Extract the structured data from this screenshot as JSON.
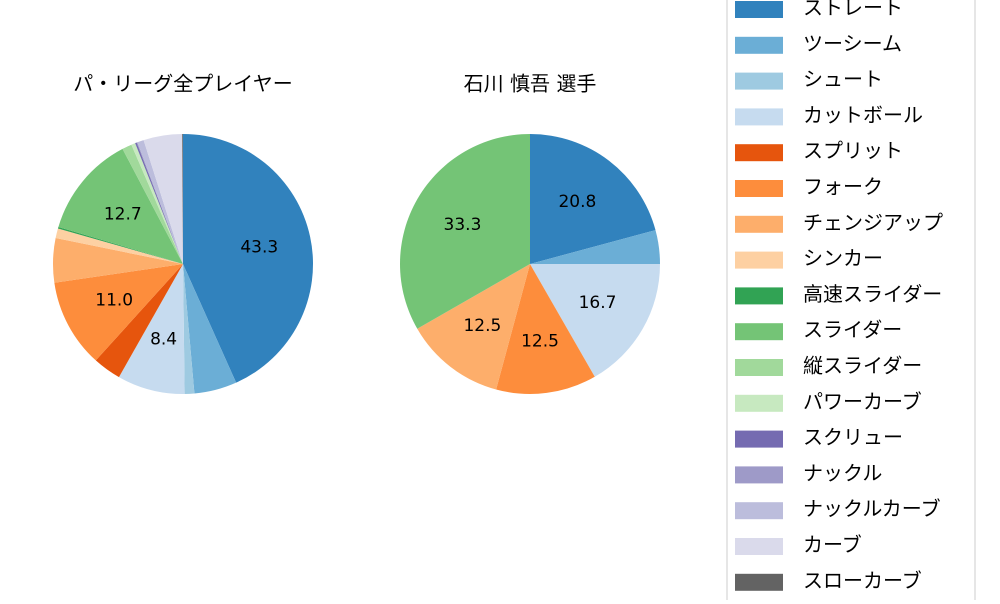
{
  "chart_data": [
    {
      "type": "pie",
      "title": "パ・リーグ全プレイヤー",
      "categories": [
        "ストレート",
        "ツーシーム",
        "シュート",
        "カットボール",
        "スプリット",
        "フォーク",
        "チェンジアップ",
        "シンカー",
        "高速スライダー",
        "スライダー",
        "縦スライダー",
        "パワーカーブ",
        "スクリュー",
        "ナックル",
        "ナックルカーブ",
        "カーブ",
        "スローカーブ"
      ],
      "values": [
        43.3,
        5.3,
        1.2,
        8.4,
        3.5,
        11.0,
        5.5,
        1.2,
        0.2,
        12.7,
        1.2,
        0.5,
        0.2,
        0.1,
        0.8,
        4.8,
        0.1
      ],
      "value_labels": [
        "43.3",
        null,
        null,
        "8.4",
        null,
        "11.0",
        null,
        null,
        null,
        "12.7",
        null,
        null,
        null,
        null,
        null,
        null,
        null
      ],
      "colors": [
        "#3182bd",
        "#6baed6",
        "#9ecae1",
        "#c6dbef",
        "#e6550d",
        "#fd8d3c",
        "#fdae6b",
        "#fdd0a2",
        "#31a354",
        "#74c476",
        "#a1d99b",
        "#c7e9c0",
        "#756bb1",
        "#9e9ac8",
        "#bcbddc",
        "#dadaeb",
        "#636363"
      ],
      "legend": true
    },
    {
      "type": "pie",
      "title": "石川 慎吾  選手",
      "categories": [
        "ストレート",
        "ツーシーム",
        "カットボール",
        "フォーク",
        "チェンジアップ",
        "スライダー"
      ],
      "values": [
        20.8,
        4.2,
        16.7,
        12.5,
        12.5,
        33.3
      ],
      "value_labels": [
        "20.8",
        null,
        "16.7",
        "12.5",
        "12.5",
        "33.3"
      ],
      "colors": [
        "#3182bd",
        "#6baed6",
        "#c6dbef",
        "#fd8d3c",
        "#fdae6b",
        "#74c476"
      ],
      "legend": false
    }
  ]
}
